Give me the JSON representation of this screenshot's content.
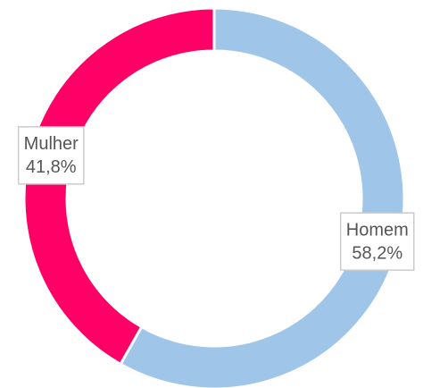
{
  "chart_data": {
    "type": "donut",
    "categories": [
      "Homem",
      "Mulher"
    ],
    "values": [
      58.2,
      41.8
    ],
    "value_labels": [
      "58,2%",
      "41,8%"
    ],
    "colors": [
      "#9fc5e8",
      "#ff0066"
    ]
  }
}
